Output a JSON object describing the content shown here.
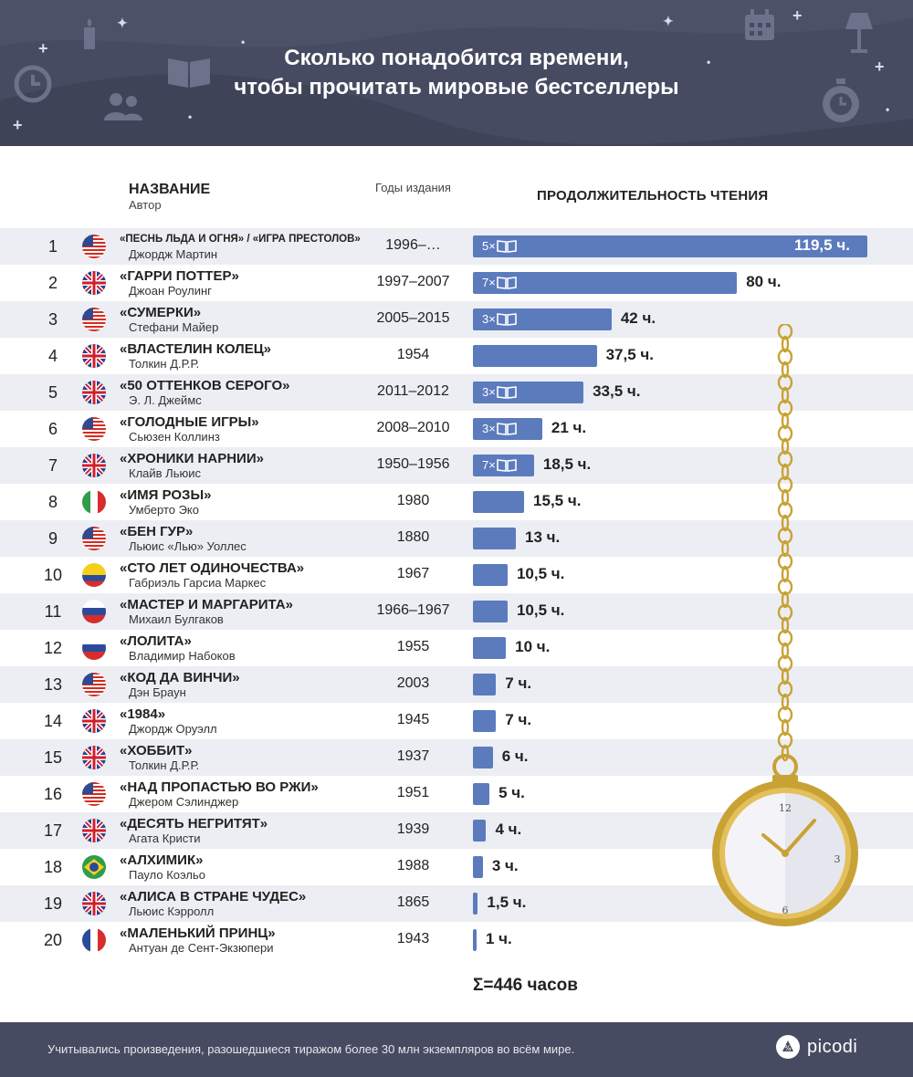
{
  "header": {
    "title_line1": "Сколько понадобится времени,",
    "title_line2": "чтобы прочитать мировые бестселлеры"
  },
  "columns": {
    "name": "НАЗВАНИЕ",
    "author": "Автор",
    "years": "Годы издания",
    "duration": "ПРОДОЛЖИТЕЛЬНОСТЬ ЧТЕНИЯ"
  },
  "colors": {
    "header_bg": "#474b61",
    "bar": "#5b7bbd",
    "row_stripe": "#eceef3",
    "gold": "#c9a235"
  },
  "chart_data": {
    "type": "bar",
    "orientation": "horizontal",
    "unit": "ч.",
    "xlim": [
      0,
      119.5
    ],
    "rows": [
      {
        "rank": "1",
        "flag": "us",
        "title": "«ПЕСНЬ ЛЬДА И ОГНЯ» / «ИГРА ПРЕСТОЛОВ»",
        "author": "Джордж Мартин",
        "years": "1996–…",
        "hours": 119.5,
        "label": "119,5 ч.",
        "volumes": "5×"
      },
      {
        "rank": "2",
        "flag": "uk",
        "title": "«ГАРРИ ПОТТЕР»",
        "author": "Джоан Роулинг",
        "years": "1997–2007",
        "hours": 80,
        "label": "80 ч.",
        "volumes": "7×"
      },
      {
        "rank": "3",
        "flag": "us",
        "title": "«СУМЕРКИ»",
        "author": "Стефани Майер",
        "years": "2005–2015",
        "hours": 42,
        "label": "42 ч.",
        "volumes": "3×"
      },
      {
        "rank": "4",
        "flag": "uk",
        "title": "«ВЛАСТЕЛИН КОЛЕЦ»",
        "author": "Толкин Д.Р.Р.",
        "years": "1954",
        "hours": 37.5,
        "label": "37,5 ч.",
        "volumes": ""
      },
      {
        "rank": "5",
        "flag": "uk",
        "title": "«50 ОТТЕНКОВ СЕРОГО»",
        "author": "Э. Л. Джеймс",
        "years": "2011–2012",
        "hours": 33.5,
        "label": "33,5 ч.",
        "volumes": "3×"
      },
      {
        "rank": "6",
        "flag": "us",
        "title": "«ГОЛОДНЫЕ ИГРЫ»",
        "author": "Сьюзен Коллинз",
        "years": "2008–2010",
        "hours": 21,
        "label": "21 ч.",
        "volumes": "3×"
      },
      {
        "rank": "7",
        "flag": "uk",
        "title": "«ХРОНИКИ НАРНИИ»",
        "author": "Клайв Льюис",
        "years": "1950–1956",
        "hours": 18.5,
        "label": "18,5 ч.",
        "volumes": "7×"
      },
      {
        "rank": "8",
        "flag": "it",
        "title": "«ИМЯ РОЗЫ»",
        "author": "Умберто Эко",
        "years": "1980",
        "hours": 15.5,
        "label": "15,5 ч.",
        "volumes": ""
      },
      {
        "rank": "9",
        "flag": "us",
        "title": "«БЕН ГУР»",
        "author": "Льюис «Лью» Уоллес",
        "years": "1880",
        "hours": 13,
        "label": "13 ч.",
        "volumes": ""
      },
      {
        "rank": "10",
        "flag": "co",
        "title": "«СТО ЛЕТ ОДИНОЧЕСТВА»",
        "author": "Габриэль Гарсиа Маркес",
        "years": "1967",
        "hours": 10.5,
        "label": "10,5 ч.",
        "volumes": ""
      },
      {
        "rank": "11",
        "flag": "ru",
        "title": "«МАСТЕР И МАРГАРИТА»",
        "author": "Михаил Булгаков",
        "years": "1966–1967",
        "hours": 10.5,
        "label": "10,5 ч.",
        "volumes": ""
      },
      {
        "rank": "12",
        "flag": "ru",
        "title": "«ЛОЛИТА»",
        "author": "Владимир Набоков",
        "years": "1955",
        "hours": 10,
        "label": "10 ч.",
        "volumes": ""
      },
      {
        "rank": "13",
        "flag": "us",
        "title": "«КОД ДА ВИНЧИ»",
        "author": "Дэн Браун",
        "years": "2003",
        "hours": 7,
        "label": "7 ч.",
        "volumes": ""
      },
      {
        "rank": "14",
        "flag": "uk",
        "title": "«1984»",
        "author": "Джордж Оруэлл",
        "years": "1945",
        "hours": 7,
        "label": "7 ч.",
        "volumes": ""
      },
      {
        "rank": "15",
        "flag": "uk",
        "title": "«ХОББИТ»",
        "author": "Толкин Д.Р.Р.",
        "years": "1937",
        "hours": 6,
        "label": "6 ч.",
        "volumes": ""
      },
      {
        "rank": "16",
        "flag": "us",
        "title": "«НАД ПРОПАСТЬЮ ВО РЖИ»",
        "author": "Джером Сэлинджер",
        "years": "1951",
        "hours": 5,
        "label": "5 ч.",
        "volumes": ""
      },
      {
        "rank": "17",
        "flag": "uk",
        "title": "«ДЕСЯТЬ НЕГРИТЯТ»",
        "author": "Агата Кристи",
        "years": "1939",
        "hours": 4,
        "label": "4 ч.",
        "volumes": ""
      },
      {
        "rank": "18",
        "flag": "br",
        "title": "«АЛХИМИК»",
        "author": "Пауло Коэльо",
        "years": "1988",
        "hours": 3,
        "label": "3 ч.",
        "volumes": ""
      },
      {
        "rank": "19",
        "flag": "uk",
        "title": "«АЛИСА В СТРАНЕ ЧУДЕС»",
        "author": "Льюис Кэрролл",
        "years": "1865",
        "hours": 1.5,
        "label": "1,5 ч.",
        "volumes": ""
      },
      {
        "rank": "20",
        "flag": "fr",
        "title": "«МАЛЕНЬКИЙ ПРИНЦ»",
        "author": "Антуан де Сент-Экзюпери",
        "years": "1943",
        "hours": 1,
        "label": "1 ч.",
        "volumes": ""
      }
    ],
    "total_label": "Σ=446 часов"
  },
  "watch": {
    "numerals": [
      "12",
      "3",
      "6"
    ]
  },
  "footer": {
    "note": "Учитывались произведения, разошедшиеся тиражом более 30 млн экземпляров во всём мире.",
    "brand": "picodi"
  }
}
